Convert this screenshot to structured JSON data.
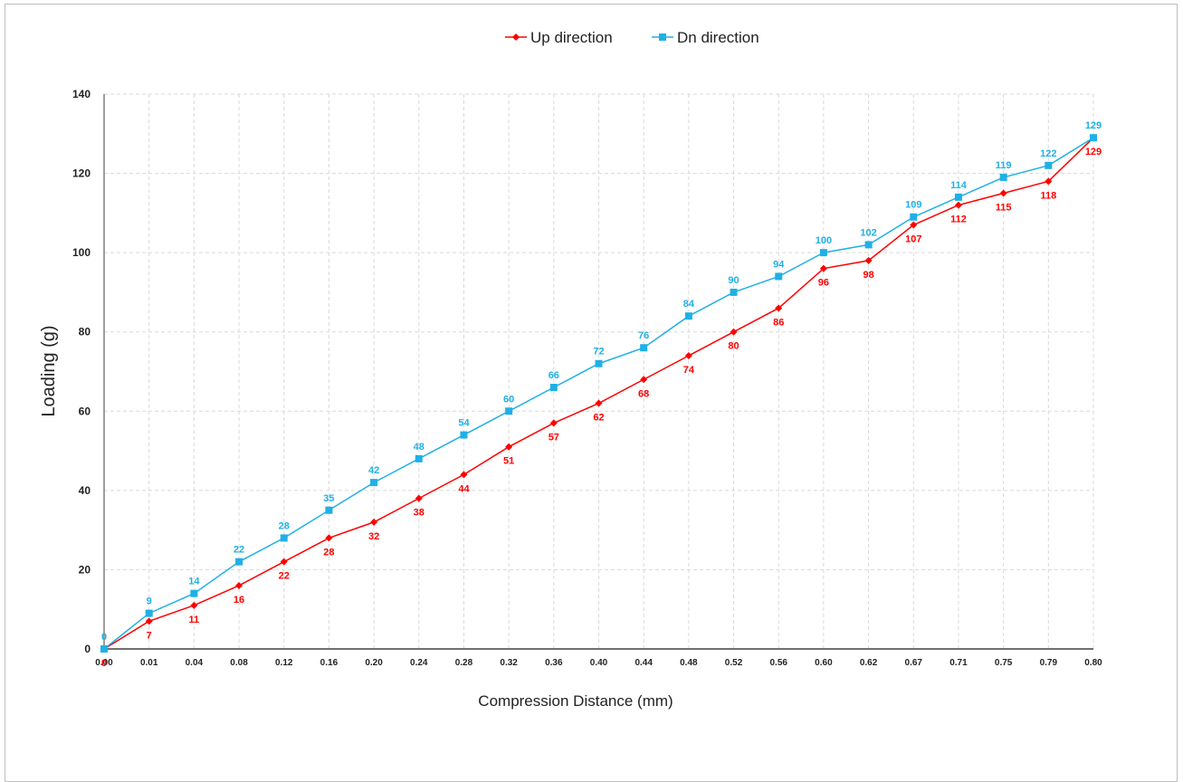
{
  "chart_data": {
    "type": "line",
    "title": "",
    "xlabel": "Compression Distance (mm)",
    "ylabel": "Loading (g)",
    "categories": [
      "0.00",
      "0.01",
      "0.04",
      "0.08",
      "0.12",
      "0.16",
      "0.20",
      "0.24",
      "0.28",
      "0.32",
      "0.36",
      "0.40",
      "0.44",
      "0.48",
      "0.52",
      "0.56",
      "0.60",
      "0.62",
      "0.67",
      "0.71",
      "0.75",
      "0.79",
      "0.80"
    ],
    "ylim": [
      0,
      140
    ],
    "yticks": [
      0,
      20,
      40,
      60,
      80,
      100,
      120,
      140
    ],
    "grid": true,
    "legend_position": "top-center",
    "series": [
      {
        "name": "Up direction",
        "color": "#ff0000",
        "marker": "diamond",
        "label_position": "below",
        "values": [
          0,
          7,
          11,
          16,
          22,
          28,
          32,
          38,
          44,
          51,
          57,
          62,
          68,
          74,
          80,
          86,
          96,
          98,
          107,
          112,
          115,
          118,
          129
        ]
      },
      {
        "name": "Dn direction",
        "color": "#1fb0e6",
        "marker": "square",
        "label_position": "above",
        "values": [
          0,
          9,
          14,
          22,
          28,
          35,
          42,
          48,
          54,
          60,
          66,
          72,
          76,
          84,
          90,
          94,
          100,
          102,
          109,
          114,
          119,
          122,
          129
        ]
      }
    ]
  }
}
